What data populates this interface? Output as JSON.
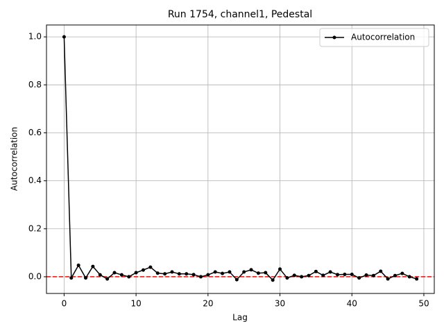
{
  "chart_data": {
    "type": "line",
    "title": "Run 1754, channel1, Pedestal",
    "xlabel": "Lag",
    "ylabel": "Autocorrelation",
    "x": [
      0,
      1,
      2,
      3,
      4,
      5,
      6,
      7,
      8,
      9,
      10,
      11,
      12,
      13,
      14,
      15,
      16,
      17,
      18,
      19,
      20,
      21,
      22,
      23,
      24,
      25,
      26,
      27,
      28,
      29,
      30,
      31,
      32,
      33,
      34,
      35,
      36,
      37,
      38,
      39,
      40,
      41,
      42,
      43,
      44,
      45,
      46,
      47,
      48,
      49
    ],
    "series": [
      {
        "name": "Autocorrelation",
        "color": "#000000",
        "values": [
          1.0,
          -0.005,
          0.048,
          -0.005,
          0.043,
          0.008,
          -0.009,
          0.017,
          0.008,
          0.0,
          0.017,
          0.028,
          0.04,
          0.015,
          0.012,
          0.02,
          0.012,
          0.012,
          0.009,
          0.0,
          0.008,
          0.02,
          0.014,
          0.02,
          -0.012,
          0.02,
          0.029,
          0.015,
          0.017,
          -0.014,
          0.032,
          -0.005,
          0.006,
          0.0,
          0.005,
          0.022,
          0.006,
          0.02,
          0.009,
          0.01,
          0.01,
          -0.005,
          0.007,
          0.005,
          0.023,
          -0.009,
          0.005,
          0.014,
          0.0,
          -0.009
        ]
      }
    ],
    "hline": {
      "value": 0,
      "color": "#ff0000"
    },
    "xlim": [
      -2.45,
      51.45
    ],
    "ylim": [
      -0.0696,
      1.0496
    ],
    "xticks": [
      0,
      10,
      20,
      30,
      40,
      50
    ],
    "yticks": [
      {
        "value": 0,
        "label": "0.0"
      },
      {
        "value": 0.2,
        "label": "0.2"
      },
      {
        "value": 0.4,
        "label": "0.4"
      },
      {
        "value": 0.6,
        "label": "0.6"
      },
      {
        "value": 0.8,
        "label": "0.8"
      },
      {
        "value": 1.0,
        "label": "1.0"
      }
    ],
    "grid": true,
    "legend": "upper right"
  }
}
